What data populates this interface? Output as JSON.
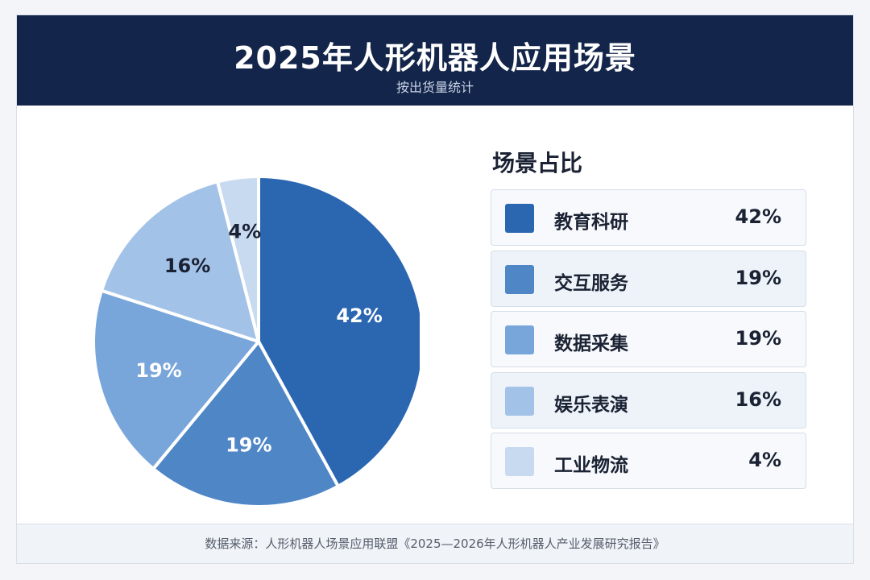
{
  "header": {
    "title": "2025年人形机器人应用场景",
    "subtitle": "按出货量统计"
  },
  "legend": {
    "title": "场景占比"
  },
  "footer": {
    "source": "数据来源：人形机器人场景应用联盟《2025—2026年人形机器人产业发展研究报告》"
  },
  "chart_data": {
    "type": "pie",
    "categories": [
      "教育科研",
      "交互服务",
      "数据采集",
      "娱乐表演",
      "工业物流"
    ],
    "values": [
      42,
      19,
      19,
      16,
      4
    ],
    "value_labels": [
      "42%",
      "19%",
      "19%",
      "16%",
      "4%"
    ],
    "unit": "%",
    "colors": [
      "#2b66b1",
      "#4f86c6",
      "#79a6da",
      "#a3c2e8",
      "#c8daf0"
    ],
    "label_colors": [
      "#ffffff",
      "#ffffff",
      "#ffffff",
      "#1a2233",
      "#1a2233"
    ],
    "start": "12 o'clock",
    "direction": "clockwise",
    "legend_position": "right"
  }
}
